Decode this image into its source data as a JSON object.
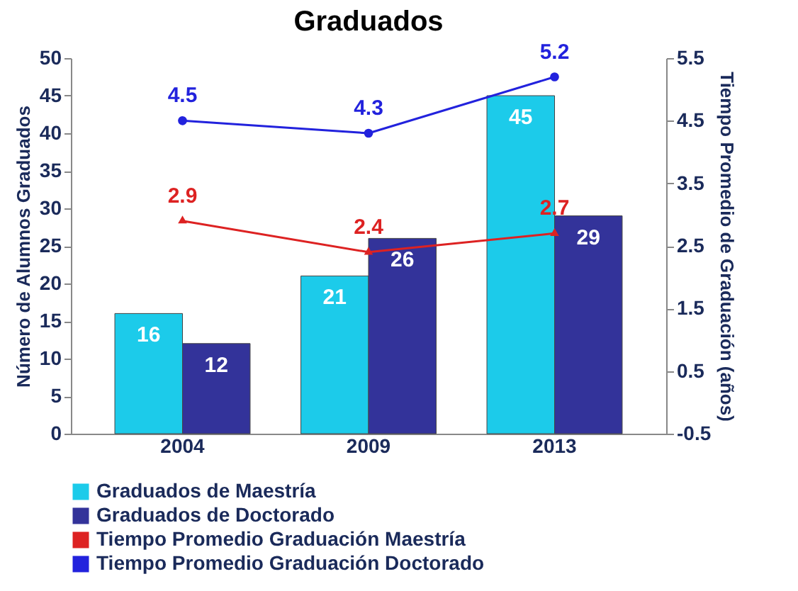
{
  "chart_data": {
    "type": "bar",
    "title": "Graduados",
    "ylabel": "Número de Alumnos Graduados",
    "y2label": "Tiempo Promedio de Graduación (años)",
    "categories": [
      "2004",
      "2009",
      "2013"
    ],
    "series": [
      {
        "name": "Graduados de Maestría",
        "color": "#1ccbea",
        "values": [
          16,
          21,
          45
        ]
      },
      {
        "name": "Graduados de Doctorado",
        "color": "#33339a",
        "values": [
          12,
          26,
          29
        ]
      },
      {
        "name": "Tiempo Promedio Graduación Maestría",
        "type": "line",
        "axis": "y2",
        "marker": "triangle",
        "color": "#dd2222",
        "values": [
          2.9,
          2.4,
          2.7
        ]
      },
      {
        "name": "Tiempo Promedio Graduación Doctorado",
        "type": "line",
        "axis": "y2",
        "marker": "circle",
        "color": "#2222dd",
        "values": [
          4.5,
          4.3,
          5.2
        ]
      }
    ],
    "ylim": [
      0,
      50
    ],
    "yticks": [
      0,
      5,
      10,
      15,
      20,
      25,
      30,
      35,
      40,
      45,
      50
    ],
    "y2lim": [
      -0.5,
      5.5
    ],
    "y2ticks": [
      -0.5,
      0.5,
      1.5,
      2.5,
      3.5,
      4.5,
      5.5
    ],
    "data_labels": true,
    "legend": "bottom",
    "grid": false
  }
}
